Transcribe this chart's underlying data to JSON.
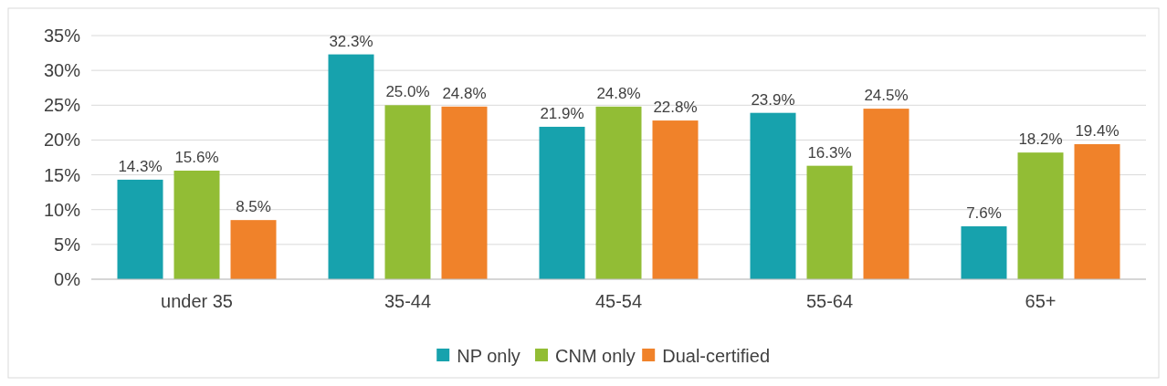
{
  "chart_data": {
    "type": "bar",
    "categories": [
      "under 35",
      "35-44",
      "45-54",
      "55-64",
      "65+"
    ],
    "series": [
      {
        "name": "NP only",
        "color": "#17a2ad",
        "values": [
          14.3,
          32.3,
          21.9,
          23.9,
          7.6
        ],
        "value_labels": [
          "14.3%",
          "32.3%",
          "21.9%",
          "23.9%",
          "7.6%"
        ]
      },
      {
        "name": "CNM only",
        "color": "#92bd35",
        "values": [
          15.6,
          25.0,
          24.8,
          16.3,
          18.2
        ],
        "value_labels": [
          "15.6%",
          "25.0%",
          "24.8%",
          "16.3%",
          "18.2%"
        ]
      },
      {
        "name": "Dual-certified",
        "color": "#f0822a",
        "values": [
          8.5,
          24.8,
          22.8,
          24.5,
          19.4
        ],
        "value_labels": [
          "8.5%",
          "24.8%",
          "22.8%",
          "24.5%",
          "19.4%"
        ]
      }
    ],
    "ylim": [
      0,
      35
    ],
    "yticks": [
      {
        "value": 0,
        "label": "0%"
      },
      {
        "value": 5,
        "label": "5%"
      },
      {
        "value": 10,
        "label": "10%"
      },
      {
        "value": 15,
        "label": "15%"
      },
      {
        "value": 20,
        "label": "20%"
      },
      {
        "value": 25,
        "label": "25%"
      },
      {
        "value": 30,
        "label": "30%"
      },
      {
        "value": 35,
        "label": "35%"
      }
    ],
    "grid": "y",
    "legend": "bottom"
  }
}
